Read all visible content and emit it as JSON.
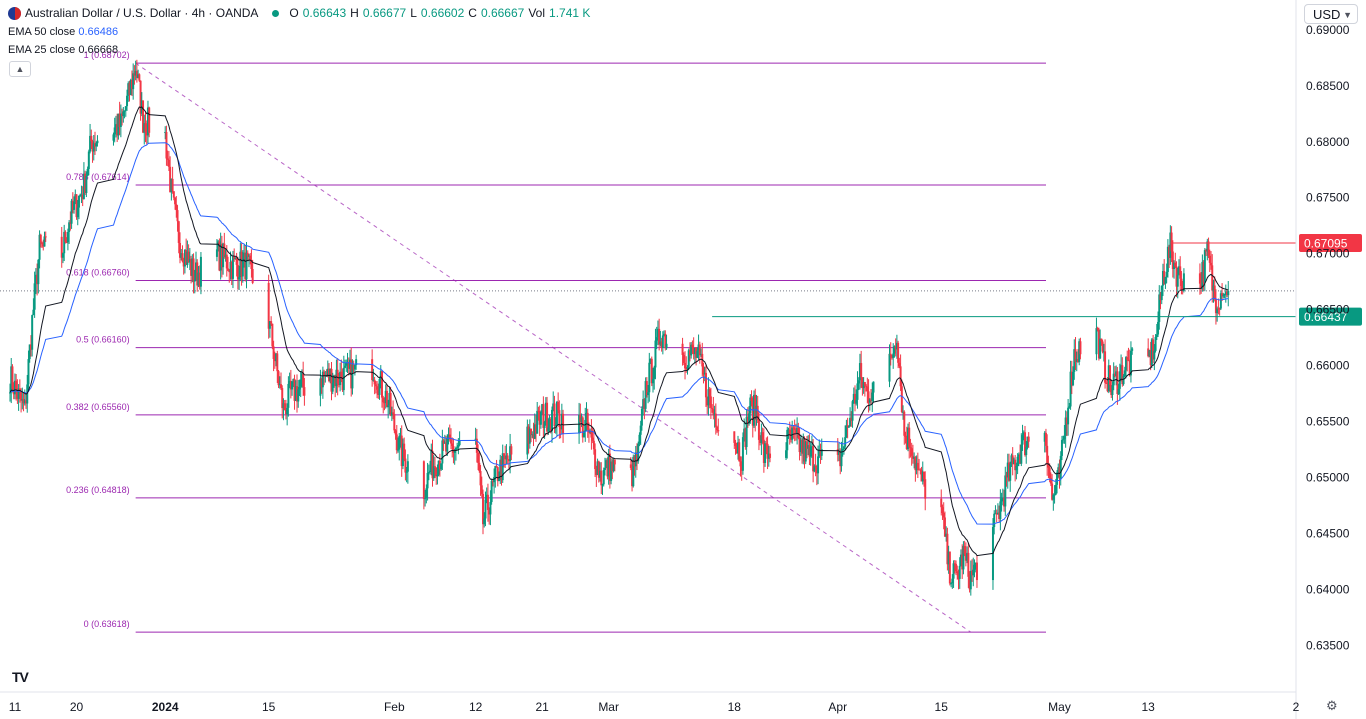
{
  "header": {
    "symbol_title": "Australian Dollar / U.S. Dollar · 4h · OANDA",
    "open_label": "O",
    "open": "0.66643",
    "high_label": "H",
    "high": "0.66677",
    "low_label": "L",
    "low": "0.66602",
    "close_label": "C",
    "close": "0.66667",
    "vol_label": "Vol",
    "vol": "1.741 K"
  },
  "indicators": {
    "ema50_label": "EMA 50 close",
    "ema50_value": "0.66486",
    "ema25_label": "EMA 25 close",
    "ema25_value": "0.66668"
  },
  "toolbar": {
    "currency": "USD",
    "collapse_icon": "chevron-up-icon",
    "settings_icon": "gear-icon",
    "logo": "TV"
  },
  "colors": {
    "up": "#089981",
    "down": "#f23645",
    "ema50": "#2962ff",
    "ema25": "#131722",
    "fib": "#9c27b0",
    "support": "#089981",
    "resistance": "#f23645"
  },
  "chart_data": {
    "type": "candlestick",
    "title": "Australian Dollar / U.S. Dollar · 4h · OANDA",
    "xlabel": "",
    "ylabel": "",
    "ylim": [
      0.6328,
      0.6907
    ],
    "grid": false,
    "y_ticks": [
      "0.69000",
      "0.68500",
      "0.68000",
      "0.67500",
      "0.67000",
      "0.66500",
      "0.66000",
      "0.65500",
      "0.65000",
      "0.64500",
      "0.64000",
      "0.63500"
    ],
    "x_ticks": [
      {
        "label": "11",
        "date": "2023-12-11"
      },
      {
        "label": "20",
        "date": "2023-12-20"
      },
      {
        "label": "2024",
        "date": "2024-01-01",
        "bold": true
      },
      {
        "label": "15",
        "date": "2024-01-15"
      },
      {
        "label": "Feb",
        "date": "2024-02-01"
      },
      {
        "label": "12",
        "date": "2024-02-12"
      },
      {
        "label": "21",
        "date": "2024-02-21"
      },
      {
        "label": "Mar",
        "date": "2024-03-01"
      },
      {
        "label": "18",
        "date": "2024-03-18"
      },
      {
        "label": "Apr",
        "date": "2024-04-01"
      },
      {
        "label": "15",
        "date": "2024-04-15"
      },
      {
        "label": "May",
        "date": "2024-05-01"
      },
      {
        "label": "13",
        "date": "2024-05-13"
      },
      {
        "label": "2",
        "date": "2024-06-02"
      }
    ],
    "fib_levels": [
      {
        "ratio": "1",
        "value": 0.68702,
        "label": "1 (0.68702)"
      },
      {
        "ratio": "0.786",
        "value": 0.67614,
        "label": "0.786 (0.67614)"
      },
      {
        "ratio": "0.618",
        "value": 0.6676,
        "label": "0.618 (0.66760)"
      },
      {
        "ratio": "0.5",
        "value": 0.6616,
        "label": "0.5 (0.66160)"
      },
      {
        "ratio": "0.382",
        "value": 0.6556,
        "label": "0.382 (0.65560)"
      },
      {
        "ratio": "0.236",
        "value": 0.64818,
        "label": "0.236 (0.64818)"
      },
      {
        "ratio": "0",
        "value": 0.63618,
        "label": "0 (0.63618)"
      }
    ],
    "fib_range": {
      "start": "2023-12-28",
      "end": "2024-04-19"
    },
    "price_labels": [
      {
        "value": 0.67095,
        "text": "0.67095",
        "color": "#f23645",
        "line_start": "2024-05-16"
      },
      {
        "value": 0.66437,
        "text": "0.66437",
        "color": "#089981",
        "line_start": "2024-03-15"
      }
    ],
    "last_price": 0.66667,
    "anchors": [
      {
        "d": "2023-12-11",
        "v": 0.659
      },
      {
        "d": "2023-12-13",
        "v": 0.656
      },
      {
        "d": "2023-12-14",
        "v": 0.664
      },
      {
        "d": "2023-12-15",
        "v": 0.6705
      },
      {
        "d": "2023-12-18",
        "v": 0.67
      },
      {
        "d": "2023-12-19",
        "v": 0.673
      },
      {
        "d": "2023-12-21",
        "v": 0.676
      },
      {
        "d": "2023-12-22",
        "v": 0.68
      },
      {
        "d": "2023-12-26",
        "v": 0.6815
      },
      {
        "d": "2023-12-27",
        "v": 0.684
      },
      {
        "d": "2023-12-28",
        "v": 0.6868
      },
      {
        "d": "2023-12-29",
        "v": 0.682
      },
      {
        "d": "2024-01-01",
        "v": 0.6805
      },
      {
        "d": "2024-01-02",
        "v": 0.6745
      },
      {
        "d": "2024-01-03",
        "v": 0.671
      },
      {
        "d": "2024-01-05",
        "v": 0.668
      },
      {
        "d": "2024-01-08",
        "v": 0.67
      },
      {
        "d": "2024-01-10",
        "v": 0.669
      },
      {
        "d": "2024-01-12",
        "v": 0.669
      },
      {
        "d": "2024-01-15",
        "v": 0.664
      },
      {
        "d": "2024-01-17",
        "v": 0.656
      },
      {
        "d": "2024-01-18",
        "v": 0.6575
      },
      {
        "d": "2024-01-22",
        "v": 0.659
      },
      {
        "d": "2024-01-25",
        "v": 0.659
      },
      {
        "d": "2024-01-29",
        "v": 0.66
      },
      {
        "d": "2024-01-31",
        "v": 0.657
      },
      {
        "d": "2024-02-02",
        "v": 0.652
      },
      {
        "d": "2024-02-05",
        "v": 0.649
      },
      {
        "d": "2024-02-06",
        "v": 0.651
      },
      {
        "d": "2024-02-08",
        "v": 0.6525
      },
      {
        "d": "2024-02-12",
        "v": 0.653
      },
      {
        "d": "2024-02-13",
        "v": 0.646
      },
      {
        "d": "2024-02-15",
        "v": 0.6505
      },
      {
        "d": "2024-02-19",
        "v": 0.6535
      },
      {
        "d": "2024-02-21",
        "v": 0.6555
      },
      {
        "d": "2024-02-23",
        "v": 0.6555
      },
      {
        "d": "2024-02-27",
        "v": 0.6545
      },
      {
        "d": "2024-02-29",
        "v": 0.65
      },
      {
        "d": "2024-03-01",
        "v": 0.651
      },
      {
        "d": "2024-03-04",
        "v": 0.65
      },
      {
        "d": "2024-03-05",
        "v": 0.652
      },
      {
        "d": "2024-03-06",
        "v": 0.658
      },
      {
        "d": "2024-03-07",
        "v": 0.66
      },
      {
        "d": "2024-03-08",
        "v": 0.663
      },
      {
        "d": "2024-03-11",
        "v": 0.661
      },
      {
        "d": "2024-03-13",
        "v": 0.661
      },
      {
        "d": "2024-03-15",
        "v": 0.656
      },
      {
        "d": "2024-03-18",
        "v": 0.6535
      },
      {
        "d": "2024-03-19",
        "v": 0.652
      },
      {
        "d": "2024-03-20",
        "v": 0.656
      },
      {
        "d": "2024-03-21",
        "v": 0.656
      },
      {
        "d": "2024-03-22",
        "v": 0.652
      },
      {
        "d": "2024-03-26",
        "v": 0.6535
      },
      {
        "d": "2024-03-28",
        "v": 0.652
      },
      {
        "d": "2024-04-01",
        "v": 0.651
      },
      {
        "d": "2024-04-02",
        "v": 0.6535
      },
      {
        "d": "2024-04-04",
        "v": 0.659
      },
      {
        "d": "2024-04-05",
        "v": 0.6575
      },
      {
        "d": "2024-04-08",
        "v": 0.66
      },
      {
        "d": "2024-04-09",
        "v": 0.663
      },
      {
        "d": "2024-04-10",
        "v": 0.654
      },
      {
        "d": "2024-04-11",
        "v": 0.653
      },
      {
        "d": "2024-04-12",
        "v": 0.65
      },
      {
        "d": "2024-04-15",
        "v": 0.647
      },
      {
        "d": "2024-04-16",
        "v": 0.642
      },
      {
        "d": "2024-04-17",
        "v": 0.641
      },
      {
        "d": "2024-04-18",
        "v": 0.643
      },
      {
        "d": "2024-04-19",
        "v": 0.641
      },
      {
        "d": "2024-04-22",
        "v": 0.645
      },
      {
        "d": "2024-04-24",
        "v": 0.65
      },
      {
        "d": "2024-04-26",
        "v": 0.653
      },
      {
        "d": "2024-04-29",
        "v": 0.6545
      },
      {
        "d": "2024-04-30",
        "v": 0.648
      },
      {
        "d": "2024-05-01",
        "v": 0.65
      },
      {
        "d": "2024-05-02",
        "v": 0.656
      },
      {
        "d": "2024-05-03",
        "v": 0.661
      },
      {
        "d": "2024-05-06",
        "v": 0.663
      },
      {
        "d": "2024-05-07",
        "v": 0.66
      },
      {
        "d": "2024-05-08",
        "v": 0.658
      },
      {
        "d": "2024-05-10",
        "v": 0.66
      },
      {
        "d": "2024-05-13",
        "v": 0.6605
      },
      {
        "d": "2024-05-14",
        "v": 0.662
      },
      {
        "d": "2024-05-15",
        "v": 0.668
      },
      {
        "d": "2024-05-16",
        "v": 0.6705
      },
      {
        "d": "2024-05-17",
        "v": 0.668
      },
      {
        "d": "2024-05-20",
        "v": 0.6675
      },
      {
        "d": "2024-05-21",
        "v": 0.67
      },
      {
        "d": "2024-05-22",
        "v": 0.666
      },
      {
        "d": "2024-05-23",
        "v": 0.6665
      }
    ]
  }
}
